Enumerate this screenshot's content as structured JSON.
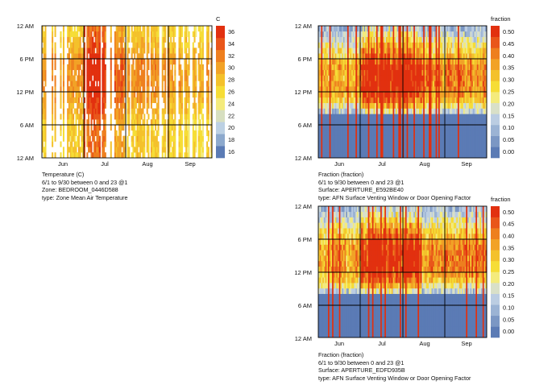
{
  "palette": {
    "temperature": [
      "#5b7bb5",
      "#8da9cd",
      "#bcd0e3",
      "#d7dfc0",
      "#f4eb7c",
      "#f6dd36",
      "#f4c12b",
      "#f2a226",
      "#ee7f1e",
      "#e9561a",
      "#e2300f"
    ],
    "fraction": [
      "#5b7bb5",
      "#7b97c4",
      "#9bb3d4",
      "#bbcde2",
      "#d9e0c8",
      "#f4eb7c",
      "#f6dd36",
      "#f4c12b",
      "#f2a226",
      "#ee7f1e",
      "#e9561a",
      "#e2300f"
    ],
    "frame": "#000000"
  },
  "charts": [
    {
      "id": "temperature",
      "legend_title": "C",
      "legend_ticks": [
        "36",
        "34",
        "32",
        "30",
        "28",
        "26",
        "24",
        "22",
        "20",
        "18",
        "16"
      ],
      "caption": [
        "Temperature (C)",
        "6/1 to 9/30 between 0 and 23 @1",
        "Zone: BEDROOM_0446D588",
        "type: Zone Mean Air Temperature"
      ]
    },
    {
      "id": "fraction-e592be40",
      "legend_title": "fraction",
      "legend_ticks": [
        "0.50",
        "0.45",
        "0.40",
        "0.35",
        "0.30",
        "0.25",
        "0.20",
        "0.15",
        "0.10",
        "0.05",
        "0.00"
      ],
      "caption": [
        "Fraction (fraction)",
        "6/1 to 9/30 between 0 and 23 @1",
        "Surface: APERTURE_E592BE40",
        "type: AFN Surface Venting Window or Door Opening Factor"
      ]
    },
    {
      "id": "fraction-edfd935b",
      "legend_title": "fraction",
      "legend_ticks": [
        "0.50",
        "0.45",
        "0.40",
        "0.35",
        "0.30",
        "0.25",
        "0.20",
        "0.15",
        "0.10",
        "0.05",
        "0.00"
      ],
      "caption": [
        "Fraction (fraction)",
        "6/1 to 9/30 between 0 and 23 @1",
        "Surface: APERTURE_EDFD935B",
        "type: AFN Surface Venting Window or Door Opening Factor"
      ]
    }
  ],
  "chart_data": [
    {
      "type": "heatmap",
      "title": "Temperature (C)",
      "x_range": [
        "6/1",
        "9/30"
      ],
      "y_range": [
        0,
        23
      ],
      "x_tick_labels": [
        "Jun",
        "Jul",
        "Aug",
        "Sep"
      ],
      "y_tick_labels": [
        "12 AM",
        "6 PM",
        "12 PM",
        "6 AM",
        "12 AM"
      ],
      "value_range": [
        16,
        37
      ],
      "value_unit": "C",
      "grid": true,
      "legend": "right",
      "hourly_profile_estimate": [
        27,
        27,
        27,
        27,
        27,
        27,
        27,
        28,
        29,
        29,
        30,
        30,
        31,
        31,
        31,
        31,
        31,
        31,
        30,
        29,
        28,
        28,
        27,
        27
      ],
      "monthly_peak_estimate": {
        "Jun": 29,
        "Jul": 37,
        "Aug": 30,
        "Sep": 27
      }
    },
    {
      "type": "heatmap",
      "title": "Fraction (fraction)",
      "x_range": [
        "6/1",
        "9/30"
      ],
      "y_range": [
        0,
        23
      ],
      "x_tick_labels": [
        "Jun",
        "Jul",
        "Aug",
        "Sep"
      ],
      "y_tick_labels": [
        "12 AM",
        "6 PM",
        "12 PM",
        "6 AM",
        "12 AM"
      ],
      "value_range": [
        0,
        0.55
      ],
      "value_unit": "fraction",
      "grid": true,
      "legend": "right",
      "hourly_profile_estimate": [
        0.0,
        0.0,
        0.0,
        0.0,
        0.0,
        0.0,
        0.0,
        0.0,
        0.2,
        0.3,
        0.4,
        0.45,
        0.5,
        0.5,
        0.5,
        0.5,
        0.5,
        0.45,
        0.4,
        0.35,
        0.3,
        0.25,
        0.2,
        0.15
      ]
    },
    {
      "type": "heatmap",
      "title": "Fraction (fraction)",
      "x_range": [
        "6/1",
        "9/30"
      ],
      "y_range": [
        0,
        23
      ],
      "x_tick_labels": [
        "Jun",
        "Jul",
        "Aug",
        "Sep"
      ],
      "y_tick_labels": [
        "12 AM",
        "6 PM",
        "12 PM",
        "6 AM",
        "12 AM"
      ],
      "value_range": [
        0,
        0.55
      ],
      "value_unit": "fraction",
      "grid": true,
      "legend": "right",
      "hourly_profile_estimate": [
        0.0,
        0.0,
        0.0,
        0.0,
        0.0,
        0.0,
        0.0,
        0.0,
        0.2,
        0.3,
        0.4,
        0.45,
        0.5,
        0.5,
        0.5,
        0.5,
        0.5,
        0.45,
        0.4,
        0.35,
        0.3,
        0.25,
        0.2,
        0.15
      ]
    }
  ]
}
